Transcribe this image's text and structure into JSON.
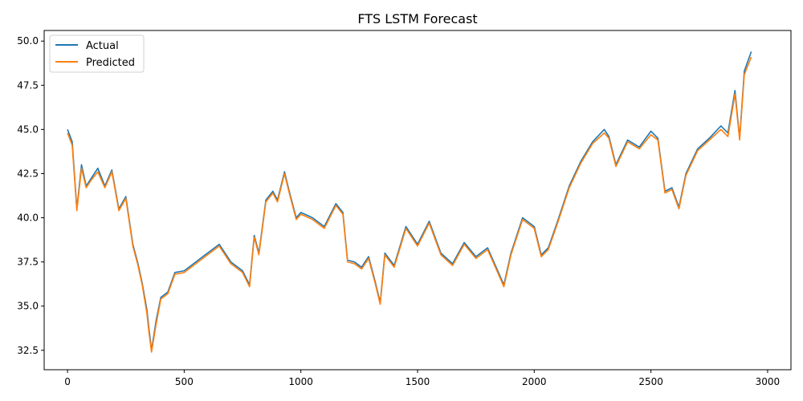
{
  "chart_data": {
    "type": "line",
    "title": "FTS LSTM Forecast",
    "xlabel": "",
    "ylabel": "",
    "xlim": [
      -100,
      3100
    ],
    "ylim": [
      31.4,
      50.6
    ],
    "xticks": [
      0,
      500,
      1000,
      1500,
      2000,
      2500,
      3000
    ],
    "xtick_labels": [
      "0",
      "500",
      "1000",
      "1500",
      "2000",
      "2500",
      "3000"
    ],
    "yticks": [
      32.5,
      35.0,
      37.5,
      40.0,
      42.5,
      45.0,
      47.5,
      50.0
    ],
    "ytick_labels": [
      "32.5",
      "35.0",
      "37.5",
      "40.0",
      "42.5",
      "45.0",
      "47.5",
      "50.0"
    ],
    "grid": false,
    "legend_position": "top-left",
    "x": [
      0,
      20,
      40,
      60,
      80,
      100,
      130,
      160,
      190,
      220,
      250,
      280,
      300,
      320,
      340,
      350,
      360,
      380,
      400,
      430,
      460,
      500,
      550,
      600,
      650,
      700,
      750,
      780,
      800,
      820,
      850,
      880,
      900,
      930,
      950,
      980,
      1000,
      1050,
      1100,
      1150,
      1180,
      1200,
      1230,
      1260,
      1290,
      1320,
      1340,
      1360,
      1400,
      1450,
      1500,
      1550,
      1600,
      1650,
      1700,
      1750,
      1800,
      1850,
      1870,
      1900,
      1950,
      2000,
      2030,
      2060,
      2100,
      2150,
      2200,
      2250,
      2300,
      2320,
      2350,
      2400,
      2450,
      2500,
      2530,
      2560,
      2590,
      2620,
      2650,
      2700,
      2750,
      2800,
      2830,
      2860,
      2880,
      2900,
      2930
    ],
    "series": [
      {
        "name": "Actual",
        "color": "#1f77b4",
        "values": [
          45.0,
          44.3,
          40.5,
          43.0,
          41.8,
          42.2,
          42.8,
          41.8,
          42.7,
          40.5,
          41.2,
          38.5,
          37.5,
          36.3,
          34.8,
          33.6,
          32.5,
          34.2,
          35.5,
          35.8,
          36.9,
          37.0,
          37.5,
          38.0,
          38.5,
          37.5,
          37.0,
          36.2,
          39.0,
          38.0,
          41.0,
          41.5,
          41.0,
          42.6,
          41.5,
          40.0,
          40.3,
          40.0,
          39.5,
          40.8,
          40.3,
          37.6,
          37.5,
          37.2,
          37.8,
          36.3,
          35.2,
          38.0,
          37.3,
          39.5,
          38.5,
          39.8,
          38.0,
          37.4,
          38.6,
          37.8,
          38.3,
          36.8,
          36.2,
          38.0,
          40.0,
          39.5,
          37.9,
          38.3,
          39.8,
          41.8,
          43.2,
          44.3,
          45.0,
          44.6,
          43.0,
          44.4,
          44.0,
          44.9,
          44.5,
          41.5,
          41.7,
          40.6,
          42.5,
          43.9,
          44.5,
          45.2,
          44.8,
          47.2,
          44.5,
          48.3,
          49.4
        ]
      },
      {
        "name": "Predicted",
        "color": "#ff7f0e",
        "values": [
          44.8,
          44.1,
          40.4,
          42.8,
          41.7,
          42.1,
          42.6,
          41.7,
          42.6,
          40.4,
          41.1,
          38.4,
          37.4,
          36.2,
          34.6,
          33.4,
          32.4,
          34.0,
          35.4,
          35.7,
          36.8,
          36.9,
          37.4,
          37.9,
          38.4,
          37.4,
          36.9,
          36.1,
          38.9,
          37.9,
          40.9,
          41.4,
          40.9,
          42.5,
          41.4,
          39.9,
          40.2,
          39.9,
          39.4,
          40.7,
          40.2,
          37.5,
          37.4,
          37.1,
          37.7,
          36.2,
          35.1,
          37.9,
          37.2,
          39.4,
          38.4,
          39.7,
          37.9,
          37.3,
          38.5,
          37.7,
          38.2,
          36.7,
          36.1,
          37.9,
          39.9,
          39.4,
          37.8,
          38.2,
          39.7,
          41.7,
          43.1,
          44.2,
          44.8,
          44.5,
          42.9,
          44.3,
          43.9,
          44.7,
          44.4,
          41.4,
          41.6,
          40.5,
          42.4,
          43.8,
          44.4,
          45.0,
          44.6,
          47.0,
          44.4,
          48.1,
          49.1
        ]
      }
    ]
  }
}
